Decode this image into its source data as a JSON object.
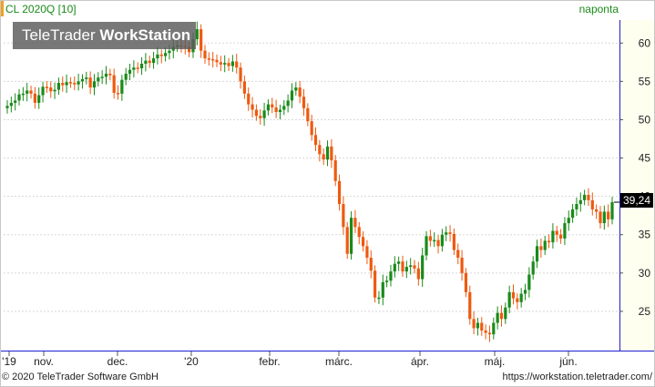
{
  "header": {
    "symbol": "CL 2020Q [10]",
    "period": "naponta"
  },
  "watermark": {
    "brand_light": "TeleTrader ",
    "brand_bold": "WorkStation"
  },
  "price_tag": "39,24",
  "footer": {
    "copyright": "© 2020 TeleTrader Software GmbH",
    "url": "https://workstation.teletrader.com/"
  },
  "colors": {
    "up": "#1a8a1a",
    "down": "#ee5a10",
    "grid": "#d8d8d8",
    "axis_bg": "#fffff0",
    "axis_line": "#1f1fd0"
  },
  "chart_data": {
    "type": "candlestick",
    "ylim": [
      20,
      63
    ],
    "y_ticks": [
      25,
      30,
      35,
      40,
      45,
      50,
      55,
      60
    ],
    "y_tick_labels": [
      "25",
      "30",
      "35",
      "40",
      "45",
      "50",
      "55",
      "60"
    ],
    "x_labels": [
      "'19",
      "nov.",
      "dec.",
      "'20",
      "febr.",
      "márc.",
      "ápr.",
      "máj.",
      "jún."
    ],
    "last_price": 39.24,
    "close": [
      51.8,
      52.2,
      52.5,
      53.3,
      53.4,
      53.8,
      53.4,
      52.2,
      53.2,
      54.3,
      54.2,
      53.7,
      53.9,
      54.8,
      54.5,
      54.9,
      54.8,
      54.6,
      55.0,
      55.3,
      55.5,
      54.2,
      55.0,
      55.5,
      55.6,
      56.0,
      55.8,
      53.5,
      53.4,
      55.2,
      56.0,
      56.5,
      56.8,
      56.7,
      57.3,
      57.7,
      57.4,
      58.0,
      58.5,
      58.3,
      58.7,
      59.0,
      59.5,
      59.7,
      59.6,
      59.5,
      58.8,
      60.5,
      61.8,
      59.0,
      58.0,
      57.9,
      57.8,
      57.5,
      57.2,
      57.4,
      57.0,
      57.6,
      56.8,
      55.0,
      53.4,
      52.0,
      51.3,
      50.5,
      50.2,
      51.2,
      52.0,
      51.6,
      51.0,
      51.3,
      51.8,
      52.5,
      53.8,
      54.2,
      53.0,
      51.5,
      49.8,
      48.0,
      46.7,
      45.5,
      44.8,
      46.5,
      44.7,
      42.0,
      39.0,
      36.0,
      32.5,
      37.2,
      36.0,
      34.7,
      33.5,
      32.0,
      30.3,
      26.8,
      26.8,
      28.8,
      29.0,
      30.2,
      31.2,
      31.5,
      30.2,
      30.8,
      31.0,
      30.6,
      29.2,
      32.3,
      34.8,
      34.2,
      34.3,
      33.5,
      35.0,
      35.3,
      35.1,
      33.0,
      32.0,
      30.0,
      27.5,
      24.0,
      22.8,
      23.5,
      22.5,
      22.2,
      22.0,
      23.5,
      24.8,
      24.0,
      25.5,
      27.5,
      26.7,
      26.2,
      27.3,
      27.8,
      29.8,
      31.5,
      33.5,
      33.0,
      34.2,
      34.0,
      35.5,
      35.0,
      34.5,
      36.5,
      37.2,
      38.3,
      39.0,
      39.5,
      40.2,
      39.5,
      38.3,
      38.0,
      36.5,
      38.0,
      37.0,
      39.24
    ]
  }
}
